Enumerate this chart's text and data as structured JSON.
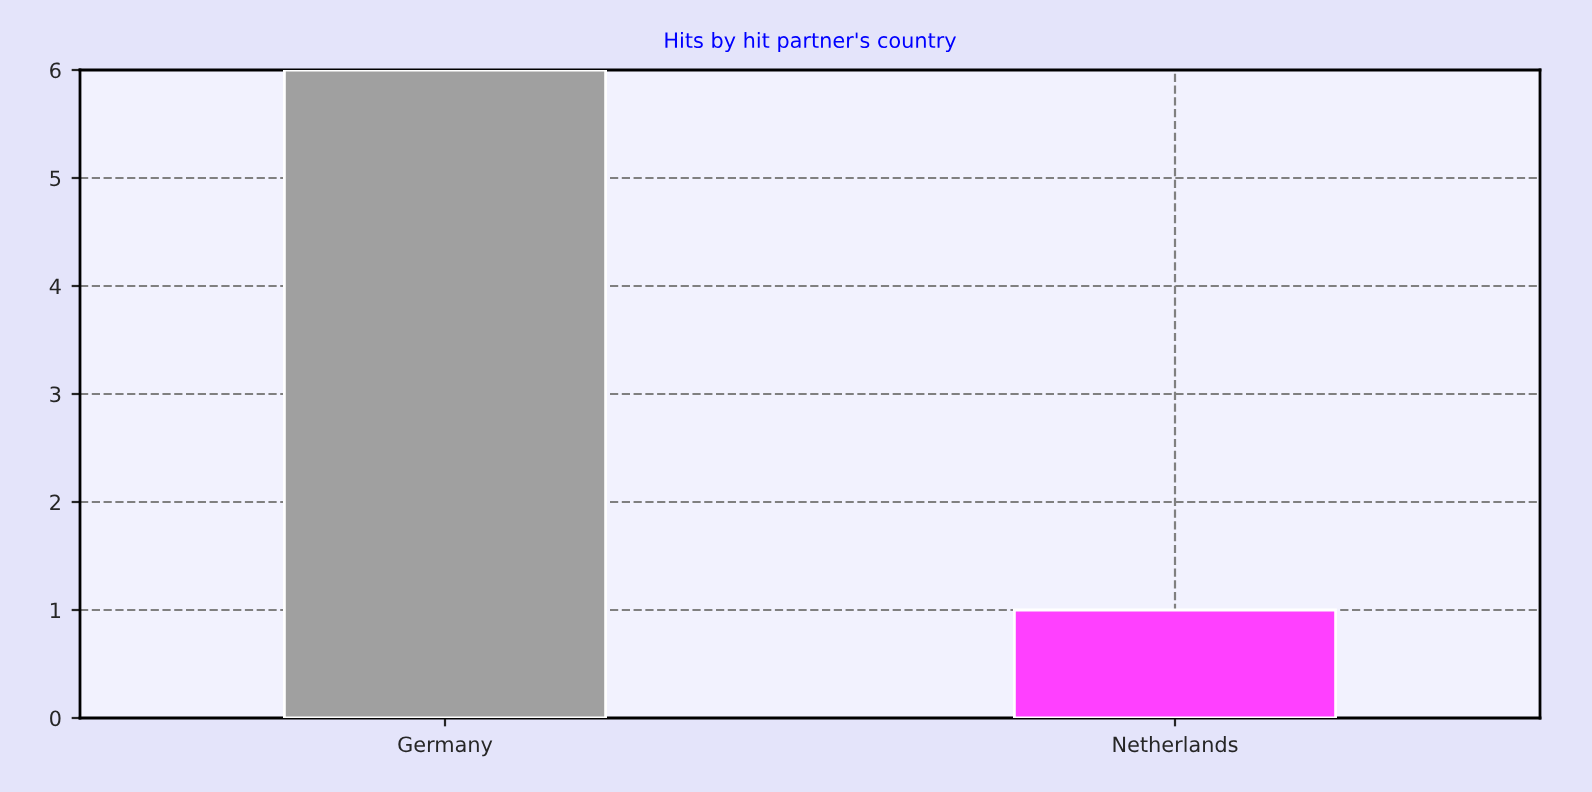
{
  "chart_data": {
    "type": "bar",
    "title": "Hits by hit partner's country",
    "categories": [
      "Germany",
      "Netherlands"
    ],
    "values": [
      6,
      1
    ],
    "colors": [
      "#a0a0a0",
      "#ff40ff"
    ],
    "ylim": [
      0,
      6
    ],
    "yticks": [
      0,
      1,
      2,
      3,
      4,
      5,
      6
    ],
    "grid": true
  }
}
